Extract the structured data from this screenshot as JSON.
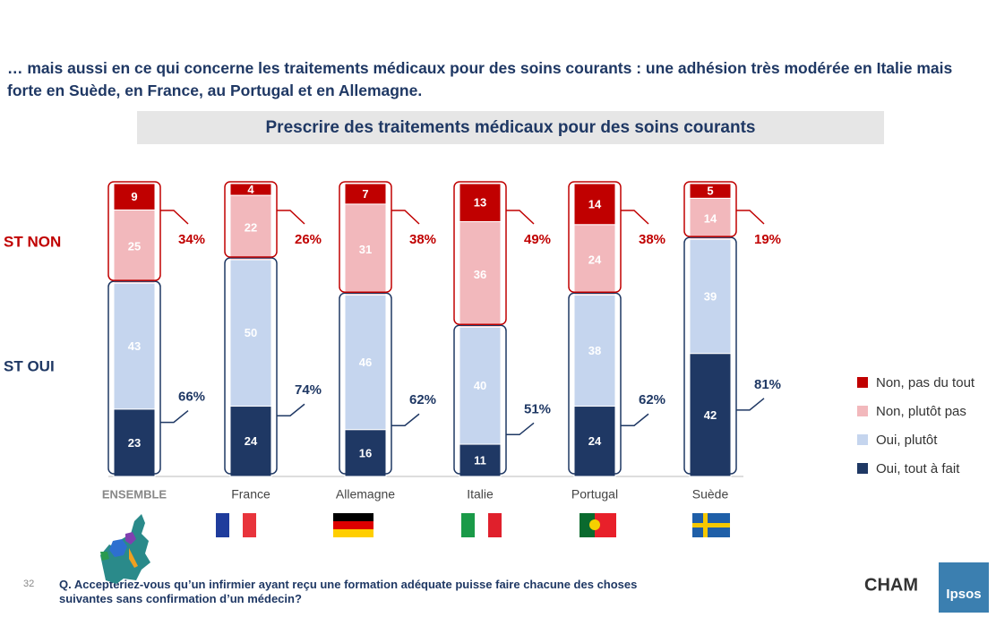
{
  "headline": "… mais aussi en ce qui concerne les traitements médicaux pour des soins courants : une adhésion très modérée en Italie mais forte en Suède, en France, au Portugal et en Allemagne.",
  "footnote": "Q. Accepteriez-vous qu’un infirmier ayant reçu une formation adéquate puisse faire chacune des choses suivantes sans confirmation d’un médecin?",
  "page_number": "32",
  "logos": [
    "CHAM",
    "Ipsos"
  ],
  "chart_data": {
    "type": "stacked_bar",
    "title": "Prescrire des traitements médicaux pour des soins courants",
    "categories": [
      "ENSEMBLE",
      "France",
      "Allemagne",
      "Italie",
      "Portugal",
      "Suède"
    ],
    "series": [
      {
        "name": "Oui, tout à fait",
        "color": "#1f3864",
        "values": [
          23,
          24,
          16,
          11,
          24,
          42
        ]
      },
      {
        "name": "Oui, plutôt",
        "color": "#c5d5ee",
        "values": [
          43,
          50,
          46,
          40,
          38,
          39
        ]
      },
      {
        "name": "Non, plutôt pas",
        "color": "#f2b8bc",
        "values": [
          25,
          22,
          31,
          36,
          24,
          14
        ]
      },
      {
        "name": "Non, pas du tout",
        "color": "#c00000",
        "values": [
          9,
          4,
          7,
          13,
          14,
          5
        ]
      }
    ],
    "subtotals": [
      {
        "name": "ST NON",
        "color": "#c00000",
        "values": [
          34,
          26,
          38,
          49,
          38,
          19
        ],
        "value_labels": [
          "34%",
          "26%",
          "38%",
          "49%",
          "38%",
          "19%"
        ]
      },
      {
        "name": "ST OUI",
        "color": "#1f3864",
        "values": [
          66,
          74,
          62,
          51,
          62,
          81
        ],
        "value_labels": [
          "66%",
          "74%",
          "62%",
          "51%",
          "62%",
          "81%"
        ]
      }
    ],
    "ylim": [
      0,
      100
    ]
  }
}
